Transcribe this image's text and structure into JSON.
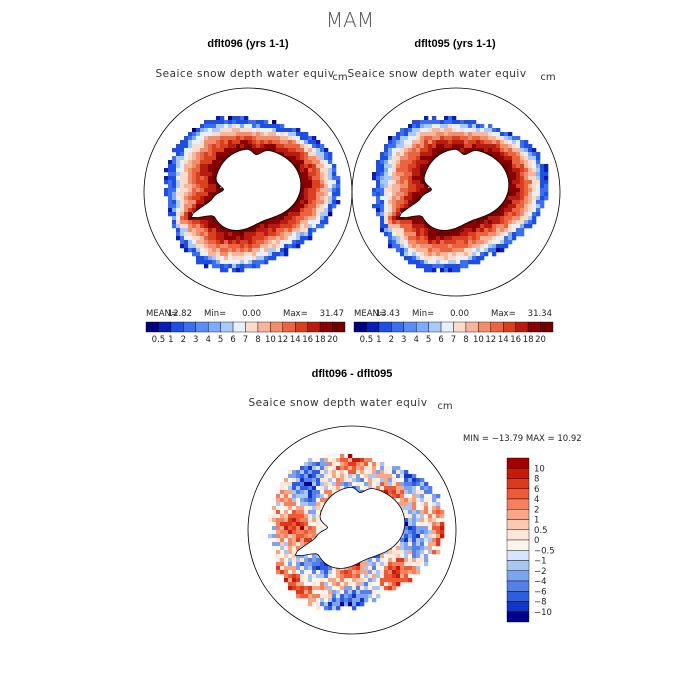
{
  "page_title": "MAM",
  "panels": [
    {
      "title": "dflt096 (yrs 1-1)",
      "subtitle": "Seaice snow depth water equiv",
      "units": "cm",
      "stats": {
        "mean_label": "MEAN=",
        "mean": "12.82",
        "min_label": "Min=",
        "min": "0.00",
        "max_label": "Max=",
        "max": "31.47"
      }
    },
    {
      "title": "dflt095 (yrs 1-1)",
      "subtitle": "Seaice snow depth water equiv",
      "units": "cm",
      "stats": {
        "mean_label": "MEAN=",
        "mean": "13.43",
        "min_label": "Min=",
        "min": "0.00",
        "max_label": "Max=",
        "max": "31.34"
      }
    }
  ],
  "diff_panel": {
    "title": "dflt096 - dflt095",
    "subtitle": "Seaice snow depth water equiv",
    "units": "cm",
    "minmax_text": "MIN = −13.79 MAX =  10.92"
  },
  "chart_data": [
    {
      "type": "heatmap",
      "projection": "south-polar-stereographic",
      "title": "dflt096 (yrs 1-1)",
      "variable": "Seaice snow depth water equiv",
      "units": "cm",
      "mean": 12.82,
      "min": 0.0,
      "max": 31.47,
      "colorbar_levels": [
        "0.5",
        "1",
        "2",
        "3",
        "4",
        "5",
        "6",
        "7",
        "8",
        "10",
        "12",
        "14",
        "16",
        "18",
        "20"
      ],
      "colorbar_colors": [
        "#00007f",
        "#0a1fb0",
        "#1f4fe0",
        "#3b6ff0",
        "#5a8ef5",
        "#7fabf7",
        "#a9c8fb",
        "#e8f1fb",
        "#fbdcc8",
        "#f7b59b",
        "#f28d6e",
        "#eb6440",
        "#d9401f",
        "#b81c10",
        "#8a0000",
        "#6e0000"
      ],
      "description": "Sea-ice ring around Antarctica: high (dark red, >20 cm) near the coast, decreasing to blue (<2 cm) at the ice edge"
    },
    {
      "type": "heatmap",
      "projection": "south-polar-stereographic",
      "title": "dflt095 (yrs 1-1)",
      "variable": "Seaice snow depth water equiv",
      "units": "cm",
      "mean": 13.43,
      "min": 0.0,
      "max": 31.34,
      "colorbar_levels": [
        "0.5",
        "1",
        "2",
        "3",
        "4",
        "5",
        "6",
        "7",
        "8",
        "10",
        "12",
        "14",
        "16",
        "18",
        "20"
      ],
      "colorbar_colors": [
        "#00007f",
        "#0a1fb0",
        "#1f4fe0",
        "#3b6ff0",
        "#5a8ef5",
        "#7fabf7",
        "#a9c8fb",
        "#e8f1fb",
        "#fbdcc8",
        "#f7b59b",
        "#f28d6e",
        "#eb6440",
        "#d9401f",
        "#b81c10",
        "#8a0000",
        "#6e0000"
      ],
      "description": "Nearly identical pattern to dflt096"
    },
    {
      "type": "heatmap",
      "projection": "south-polar-stereographic",
      "title": "dflt096 - dflt095",
      "variable": "Seaice snow depth water equiv",
      "units": "cm",
      "min": -13.79,
      "max": 10.92,
      "colorbar_levels": [
        "10",
        "8",
        "6",
        "4",
        "2",
        "1",
        "0.5",
        "0",
        "−0.5",
        "−1",
        "−2",
        "−4",
        "−6",
        "−8",
        "−10"
      ],
      "colorbar_colors": [
        "#a50000",
        "#c41c0c",
        "#dc3a1c",
        "#ee5a36",
        "#f5805e",
        "#f9a686",
        "#fbc8b0",
        "#fde6da",
        "#fdf4ec",
        "#d4e6f7",
        "#a9c6f2",
        "#7ea3ed",
        "#5480e8",
        "#2f5de0",
        "#1235c8",
        "#00008b"
      ],
      "description": "Mixed positive and negative differences scattered around the sea-ice zone"
    }
  ]
}
